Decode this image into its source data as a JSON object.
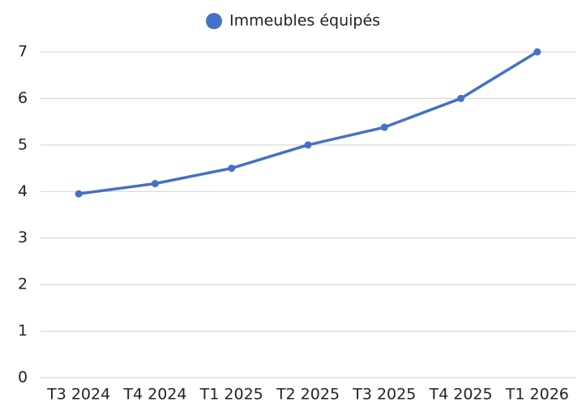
{
  "chart_data": {
    "type": "line",
    "categories": [
      "T3 2024",
      "T4 2024",
      "T1 2025",
      "T2 2025",
      "T3 2025",
      "T4 2025",
      "T1 2026"
    ],
    "series": [
      {
        "name": "Immeubles équipés",
        "color": "#4472c4",
        "values": [
          3.95,
          4.17,
          4.5,
          5.0,
          5.38,
          6.0,
          7.0
        ]
      }
    ],
    "ylim": [
      0,
      7
    ],
    "yticks": [
      0,
      1,
      2,
      3,
      4,
      5,
      6,
      7
    ],
    "grid": true,
    "legend": "top"
  }
}
